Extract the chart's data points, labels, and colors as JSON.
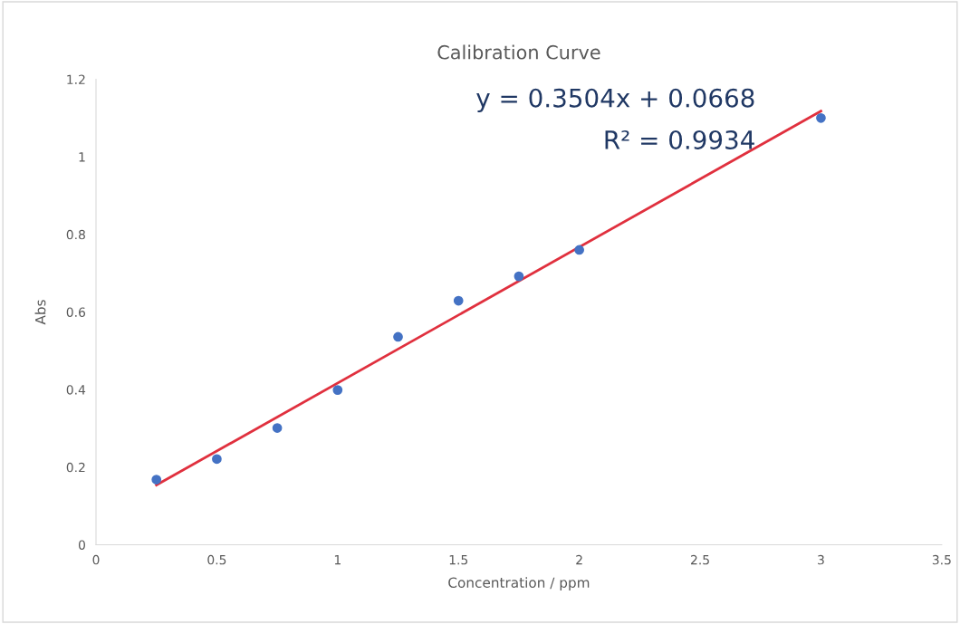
{
  "chart_data": {
    "type": "scatter",
    "title": "Calibration Curve",
    "xlabel": "Concentration / ppm",
    "ylabel": "Abs",
    "x": [
      0.25,
      0.5,
      0.75,
      1,
      1.25,
      1.5,
      1.75,
      2,
      3
    ],
    "series": [
      {
        "color": "#4472c4",
        "marker": "circle",
        "values": [
          0.168,
          0.221,
          0.301,
          0.399,
          0.536,
          0.629,
          0.692,
          0.76,
          1.1
        ]
      },
      {
        "type": "line",
        "color": "#e0303e",
        "marker": "none",
        "line_style": "solid",
        "x": [
          0.25,
          3
        ],
        "values": [
          0.154,
          1.118
        ]
      }
    ],
    "annotations": [
      "y = 0.3504x + 0.0668",
      "R² = 0.9934"
    ],
    "xlim": [
      0,
      3.5
    ],
    "xticks": [
      0,
      0.5,
      1,
      1.5,
      2,
      2.5,
      3,
      3.5
    ],
    "ylim": [
      0,
      1.2
    ],
    "yticks": [
      0,
      0.2,
      0.4,
      0.6,
      0.8,
      1,
      1.2
    ],
    "grid": false,
    "legend": false
  }
}
